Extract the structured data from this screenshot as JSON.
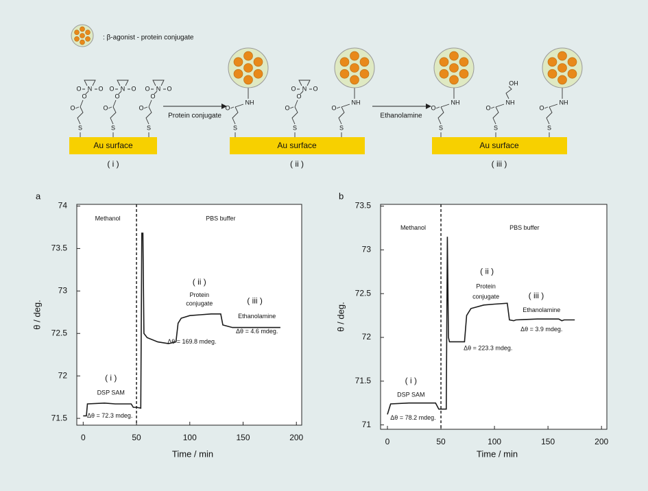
{
  "diagram": {
    "legend": ": β-agonist - protein conjugate",
    "surface": "Au surface",
    "stages": [
      "( i )",
      "( ii )",
      "( iii )"
    ],
    "arrows": [
      "Protein conjugate",
      "Ethanolamine"
    ],
    "atoms": {
      "nhs": [
        "S",
        "O",
        "O",
        "N",
        "O",
        "O"
      ],
      "amide": [
        "S",
        "O",
        "NH"
      ],
      "ethanolamine": [
        "S",
        "O",
        "NH",
        "OH"
      ]
    }
  },
  "chart_data": [
    {
      "type": "line",
      "label": "a",
      "xlabel": "Time / min",
      "ylabel": "θ / deg.",
      "color": "#1a1a1a",
      "x": [
        0,
        3,
        4,
        20,
        30,
        45,
        47,
        50,
        54,
        55,
        56,
        57,
        60,
        70,
        80,
        87,
        89,
        92,
        100,
        110,
        120,
        129,
        131,
        140,
        150,
        170,
        185
      ],
      "values": [
        71.53,
        71.53,
        71.67,
        71.68,
        71.67,
        71.67,
        71.63,
        71.63,
        71.62,
        73.68,
        73.68,
        72.5,
        72.45,
        72.4,
        72.38,
        72.4,
        72.62,
        72.68,
        72.71,
        72.72,
        72.73,
        72.73,
        72.6,
        72.57,
        72.57,
        72.57,
        72.57
      ],
      "event_x": 50,
      "xlim": [
        -6,
        205
      ],
      "xticks": [
        0,
        50,
        100,
        150,
        200
      ],
      "ylim": [
        71.42,
        74.02
      ],
      "yticks": [
        71.5,
        72,
        72.5,
        73,
        73.5,
        74
      ],
      "annotations": [
        "Methanol",
        "PBS buffer",
        "( ii )",
        "Protein",
        "conjugate",
        "( iii )",
        "Ethanolamine",
        "Δθ = 169.8 mdeg.",
        "Δθ = 4.6 mdeg.",
        "( i )",
        "DSP SAM",
        "Δθ = 72.3 mdeg."
      ]
    },
    {
      "type": "line",
      "label": "b",
      "xlabel": "Time / min",
      "ylabel": "θ / deg.",
      "color": "#1a1a1a",
      "x": [
        0,
        2,
        3,
        20,
        45,
        48,
        55,
        56,
        57,
        58,
        65,
        72,
        74,
        78,
        90,
        100,
        112,
        114,
        118,
        120,
        140,
        160,
        163,
        165,
        175
      ],
      "values": [
        71.12,
        71.2,
        71.24,
        71.25,
        71.25,
        71.18,
        71.18,
        73.15,
        72.0,
        71.95,
        71.95,
        71.95,
        72.25,
        72.33,
        72.37,
        72.38,
        72.39,
        72.2,
        72.19,
        72.2,
        72.21,
        72.21,
        72.19,
        72.2,
        72.2
      ],
      "event_x": 50,
      "xlim": [
        -6.4,
        205
      ],
      "xticks": [
        0,
        50,
        100,
        150,
        200
      ],
      "ylim": [
        70.95,
        73.52
      ],
      "yticks": [
        71,
        71.5,
        72,
        72.5,
        73,
        73.5
      ],
      "annotations": [
        "Methanol",
        "PBS buffer",
        "( ii )",
        "Protein",
        "conjugate",
        "( iii )",
        "Ethanolamine",
        "Δθ = 223.3 mdeg.",
        "Δθ = 3.9 mdeg.",
        "( i )",
        "DSP SAM",
        "Δθ = 78.2 mdeg."
      ]
    }
  ]
}
